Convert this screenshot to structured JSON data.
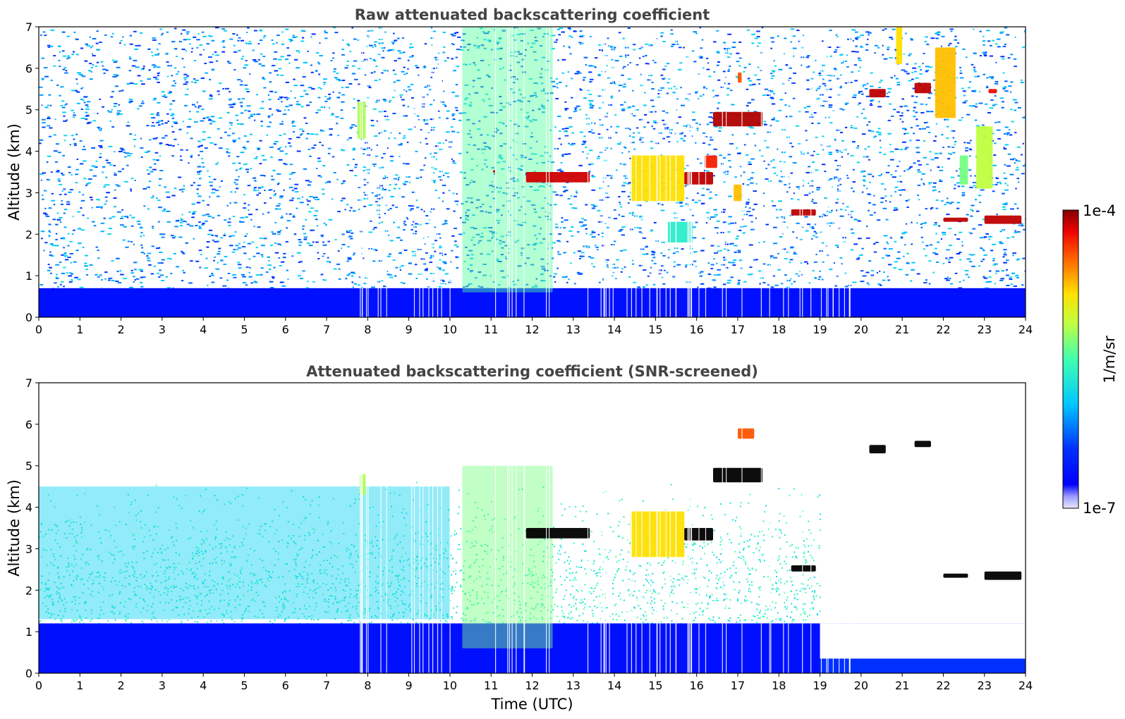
{
  "chart_data": [
    {
      "type": "heatmap",
      "title": "Raw attenuated backscattering coefficient",
      "xlabel": "",
      "ylabel": "Altitude (km)",
      "xlim": [
        0,
        24
      ],
      "ylim": [
        0,
        7
      ],
      "x_ticks": [
        "0",
        "1",
        "2",
        "3",
        "4",
        "5",
        "6",
        "7",
        "8",
        "9",
        "10",
        "11",
        "12",
        "13",
        "14",
        "15",
        "16",
        "17",
        "18",
        "19",
        "20",
        "21",
        "22",
        "23",
        "24"
      ],
      "y_ticks": [
        "0",
        "1",
        "2",
        "3",
        "4",
        "5",
        "6",
        "7"
      ],
      "colorscale": "jet",
      "background_noise": "blue speckle at all altitudes",
      "boundary_layer": {
        "top_km": 0.7,
        "level": 0.12
      },
      "features": [
        {
          "t0": 7.75,
          "t1": 7.95,
          "z0": 4.3,
          "z1": 5.2,
          "level": 0.6
        },
        {
          "t0": 10.3,
          "t1": 12.5,
          "z0": 0.6,
          "z1": 7.0,
          "level": 0.52
        },
        {
          "t0": 11.05,
          "t1": 11.1,
          "z0": 3.48,
          "z1": 3.55,
          "level": 0.95
        },
        {
          "t0": 11.85,
          "t1": 13.4,
          "z0": 3.25,
          "z1": 3.5,
          "level": 0.95
        },
        {
          "t0": 14.4,
          "t1": 15.7,
          "z0": 2.8,
          "z1": 3.9,
          "level": 0.72
        },
        {
          "t0": 15.7,
          "t1": 16.4,
          "z0": 3.2,
          "z1": 3.5,
          "level": 0.96
        },
        {
          "t0": 16.2,
          "t1": 16.5,
          "z0": 3.6,
          "z1": 3.9,
          "level": 0.9
        },
        {
          "t0": 16.9,
          "t1": 17.1,
          "z0": 2.8,
          "z1": 3.2,
          "level": 0.75
        },
        {
          "t0": 15.3,
          "t1": 15.9,
          "z0": 1.8,
          "z1": 2.3,
          "level": 0.45
        },
        {
          "t0": 16.4,
          "t1": 17.6,
          "z0": 4.6,
          "z1": 4.95,
          "level": 0.97
        },
        {
          "t0": 17.0,
          "t1": 17.1,
          "z0": 5.65,
          "z1": 5.9,
          "level": 0.85
        },
        {
          "t0": 18.3,
          "t1": 18.9,
          "z0": 2.45,
          "z1": 2.6,
          "level": 0.96
        },
        {
          "t0": 20.2,
          "t1": 20.6,
          "z0": 5.3,
          "z1": 5.5,
          "level": 0.96
        },
        {
          "t0": 20.85,
          "t1": 21.0,
          "z0": 6.1,
          "z1": 7.0,
          "level": 0.72
        },
        {
          "t0": 21.3,
          "t1": 21.7,
          "z0": 5.4,
          "z1": 5.65,
          "level": 0.96
        },
        {
          "t0": 21.8,
          "t1": 22.3,
          "z0": 4.8,
          "z1": 6.5,
          "level": 0.75
        },
        {
          "t0": 22.4,
          "t1": 22.6,
          "z0": 3.2,
          "z1": 3.9,
          "level": 0.55
        },
        {
          "t0": 22.8,
          "t1": 23.2,
          "z0": 3.1,
          "z1": 4.6,
          "level": 0.62
        },
        {
          "t0": 22.0,
          "t1": 22.6,
          "z0": 2.3,
          "z1": 2.4,
          "level": 0.96
        },
        {
          "t0": 23.0,
          "t1": 23.9,
          "z0": 2.25,
          "z1": 2.45,
          "level": 0.96
        },
        {
          "t0": 23.1,
          "t1": 23.3,
          "z0": 5.4,
          "z1": 5.5,
          "level": 0.92
        }
      ]
    },
    {
      "type": "heatmap",
      "title": "Attenuated backscattering coefficient (SNR-screened)",
      "xlabel": "Time (UTC)",
      "ylabel": "Altitude (km)",
      "xlim": [
        0,
        24
      ],
      "ylim": [
        0,
        7
      ],
      "x_ticks": [
        "0",
        "1",
        "2",
        "3",
        "4",
        "5",
        "6",
        "7",
        "8",
        "9",
        "10",
        "11",
        "12",
        "13",
        "14",
        "15",
        "16",
        "17",
        "18",
        "19",
        "20",
        "21",
        "22",
        "23",
        "24"
      ],
      "y_ticks": [
        "0",
        "1",
        "2",
        "3",
        "4",
        "5",
        "6",
        "7"
      ],
      "colorscale": "jet",
      "boundary_layer": {
        "top_km": 1.2,
        "level": 0.12
      },
      "thin_layer_after_19h": {
        "top_km": 0.35,
        "level": 0.2
      },
      "clipped_above_max_color": "#000000",
      "features": [
        {
          "t0": 0.0,
          "t1": 10.0,
          "z0": 1.3,
          "z1": 4.5,
          "level": 0.38
        },
        {
          "t0": 10.3,
          "t1": 12.5,
          "z0": 0.6,
          "z1": 5.0,
          "level": 0.55
        },
        {
          "t0": 14.4,
          "t1": 15.7,
          "z0": 2.8,
          "z1": 3.9,
          "level": 0.72
        },
        {
          "t0": 11.85,
          "t1": 13.4,
          "z0": 3.25,
          "z1": 3.5,
          "level": 1.0
        },
        {
          "t0": 15.7,
          "t1": 16.4,
          "z0": 3.2,
          "z1": 3.5,
          "level": 1.0
        },
        {
          "t0": 16.4,
          "t1": 17.6,
          "z0": 4.6,
          "z1": 4.95,
          "level": 1.0
        },
        {
          "t0": 18.3,
          "t1": 18.9,
          "z0": 2.45,
          "z1": 2.6,
          "level": 1.0
        },
        {
          "t0": 20.2,
          "t1": 20.6,
          "z0": 5.3,
          "z1": 5.5,
          "level": 1.0
        },
        {
          "t0": 21.3,
          "t1": 21.7,
          "z0": 5.45,
          "z1": 5.6,
          "level": 1.0
        },
        {
          "t0": 22.0,
          "t1": 22.6,
          "z0": 2.3,
          "z1": 2.4,
          "level": 1.0
        },
        {
          "t0": 23.0,
          "t1": 23.9,
          "z0": 2.25,
          "z1": 2.45,
          "level": 1.0
        },
        {
          "t0": 17.0,
          "t1": 17.4,
          "z0": 5.65,
          "z1": 5.9,
          "level": 0.85
        },
        {
          "t0": 7.8,
          "t1": 7.95,
          "z0": 4.3,
          "z1": 4.8,
          "level": 0.6
        }
      ]
    }
  ],
  "colorbar": {
    "label": "1/m/sr",
    "max_label": "1e-4",
    "min_label": "1e-7",
    "colormap": "jet"
  }
}
